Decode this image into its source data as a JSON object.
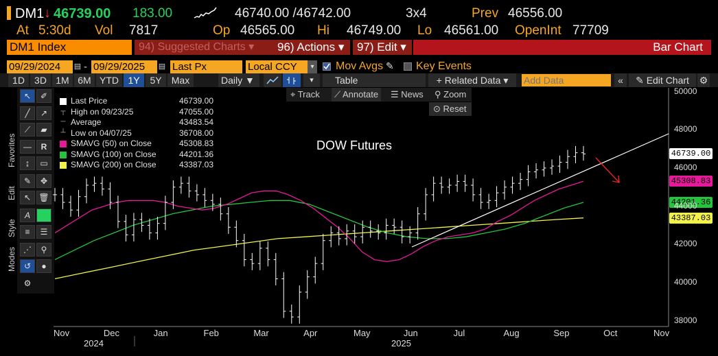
{
  "quote": {
    "ticker": "DM1",
    "arrow": "↓",
    "last": "46739.00",
    "change": "183.00",
    "bid_ask": "46740.00 /46742.00",
    "size": "3x4",
    "prev_label": "Prev",
    "prev": "46556.00",
    "at_label": "At",
    "at": "5:30d",
    "vol_label": "Vol",
    "vol": "7817",
    "op_label": "Op",
    "op": "46565.00",
    "hi_label": "Hi",
    "hi": "46749.00",
    "lo_label": "Lo",
    "lo": "46561.00",
    "oi_label": "OpenInt",
    "oi": "77709"
  },
  "menubar": {
    "security": "DM1 Index",
    "suggested": "94) Suggested Charts ▾",
    "actions": "96) Actions ▾",
    "edit": "97) Edit ▾",
    "chart_type": "Bar Chart"
  },
  "controls": {
    "start_date": "09/29/2024",
    "end_date": "09/29/2025",
    "field": "Last Px",
    "currency": "Local CCY",
    "mov_avgs": "Mov Avgs",
    "key_events": "Key Events"
  },
  "periods": [
    "1D",
    "3D",
    "1M",
    "6M",
    "YTD",
    "1Y",
    "5Y",
    "Max"
  ],
  "selected_period": "1Y",
  "toolbar": {
    "daily": "Daily ▼",
    "table": "Table",
    "related": "+ Related Data ▾",
    "add_data_placeholder": "Add Data",
    "edit_chart": "Edit Chart",
    "track": "Track",
    "annotate": "Annotate",
    "news": "News",
    "zoom": "Zoom",
    "reset": "Reset"
  },
  "side_tabs": [
    "Favorites",
    "Edit",
    "Style",
    "Modes"
  ],
  "legend": [
    {
      "name": "Last Price",
      "value": "46739.00",
      "color": "#ffffff"
    },
    {
      "name": "High on 09/23/25",
      "value": "47055.00",
      "color": ""
    },
    {
      "name": "Average",
      "value": "43483.54",
      "color": ""
    },
    {
      "name": "Low on 04/07/25",
      "value": "36708.00",
      "color": ""
    },
    {
      "name": "SMAVG (50)  on Close",
      "value": "45308.83",
      "color": "#e6199b"
    },
    {
      "name": "SMAVG (100)  on Close",
      "value": "44201.36",
      "color": "#26c43a"
    },
    {
      "name": "SMAVG (200)  on Close",
      "value": "43387.03",
      "color": "#f2f24a"
    }
  ],
  "annotation": "DOW Futures",
  "price_labels": [
    {
      "value": "46739.00",
      "color": "#ffffff"
    },
    {
      "value": "45308.83",
      "color": "#e6199b"
    },
    {
      "value": "44201.36",
      "color": "#26c43a"
    },
    {
      "value": "43387.03",
      "color": "#f2f24a"
    }
  ],
  "chart_data": {
    "type": "bar",
    "title": "DOW Futures",
    "y_ticks": [
      38000,
      40000,
      42000,
      44000,
      46000,
      48000,
      50000
    ],
    "ylim": [
      37700,
      50200
    ],
    "x_labels": [
      "Nov",
      "Dec",
      "Jan",
      "Feb",
      "Mar",
      "Apr",
      "May",
      "Jun",
      "Jul",
      "Aug",
      "Sep",
      "Oct",
      "Nov"
    ],
    "year_labels": [
      "2024",
      "2025"
    ],
    "grid": false,
    "series": [
      {
        "name": "Last Price",
        "color": "#ffffff",
        "values": [
          44600,
          44200,
          43800,
          44500,
          45100,
          45200,
          44900,
          44200,
          43200,
          42500,
          43300,
          43000,
          42600,
          43100,
          44200,
          45000,
          45200,
          44800,
          44600,
          44300,
          44100,
          43600,
          42900,
          42200,
          41200,
          41000,
          41800,
          41200,
          40200,
          38500,
          38200,
          39500,
          40300,
          41000,
          42200,
          42600,
          42300,
          42700,
          42400,
          42900,
          42700,
          42600,
          43000,
          42900,
          42400,
          42600,
          43600,
          44600,
          45200,
          45000,
          45100,
          45300,
          45100,
          44600,
          44200,
          44300,
          44700,
          45000,
          45200,
          45400,
          45800,
          45900,
          46000,
          46100,
          46300,
          46600,
          46800,
          46739
        ]
      },
      {
        "name": "SMAVG (50)",
        "color": "#e6199b",
        "values": [
          42600,
          43000,
          43400,
          43800,
          44000,
          44200,
          44300,
          44300,
          44300,
          44200,
          44000,
          43900,
          43800,
          43900,
          44100,
          44400,
          44700,
          44800,
          44800,
          44600,
          44300,
          43900,
          43400,
          42900,
          42300,
          41600,
          41200,
          41100,
          41200,
          41500,
          41900,
          42200,
          42400,
          42500,
          42600,
          42800,
          43200,
          43500,
          43900,
          44300,
          44600,
          44900,
          45100,
          45308.83
        ]
      },
      {
        "name": "SMAVG (100)",
        "color": "#26c43a",
        "values": [
          41200,
          41700,
          42200,
          42600,
          43000,
          43300,
          43600,
          43800,
          44000,
          44100,
          44200,
          44300,
          44300,
          44100,
          43700,
          43300,
          42900,
          42600,
          42400,
          42300,
          42300,
          42400,
          42600,
          42800,
          43100,
          43500,
          43900,
          44201.36
        ]
      },
      {
        "name": "SMAVG (200)",
        "color": "#f2f24a",
        "values": [
          40200,
          40500,
          40800,
          41100,
          41400,
          41700,
          41900,
          42100,
          42300,
          42400,
          42500,
          42600,
          42700,
          42800,
          42900,
          43000,
          43100,
          43200,
          43300,
          43387.03
        ]
      }
    ]
  }
}
